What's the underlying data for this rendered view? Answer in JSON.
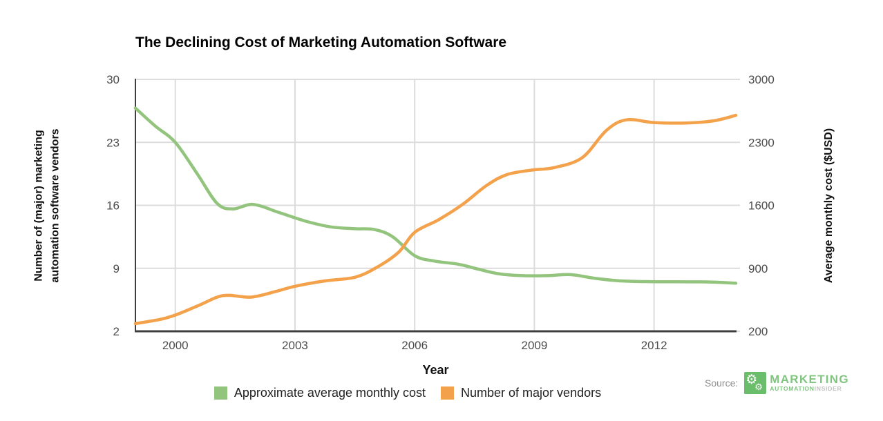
{
  "chart_data": {
    "type": "line",
    "title": "The Declining Cost of Marketing Automation Software",
    "grid": true,
    "legend_position": "bottom",
    "background": "#ffffff",
    "grid_color": "#dcdcdc",
    "axis_color": "#3f3f3f",
    "tick_text_color": "#4c4c4c",
    "x_axis": {
      "label": "Year",
      "ticks": [
        2000,
        2003,
        2006,
        2009,
        2012
      ],
      "range": [
        1999,
        2014.05
      ]
    },
    "y_left": {
      "label": "Number of (major) marketing automation software vendors",
      "label_lines": [
        "Number of (major) marketing",
        "automation software vendors"
      ],
      "ticks": [
        30,
        23,
        16,
        9,
        2
      ],
      "range": [
        2,
        30
      ]
    },
    "y_right": {
      "label": "Average monthly cost ($USD)",
      "ticks": [
        3000,
        2300,
        1600,
        900,
        200
      ],
      "range": [
        200,
        3000
      ]
    },
    "series": [
      {
        "name": "Approximate average monthly cost",
        "axis": "right",
        "color": "#93c47d",
        "points": [
          [
            1999,
            2680
          ],
          [
            1999.5,
            2480
          ],
          [
            2000,
            2300
          ],
          [
            2000.55,
            1950
          ],
          [
            2001.05,
            1620
          ],
          [
            2001.45,
            1560
          ],
          [
            2001.95,
            1610
          ],
          [
            2002.6,
            1520
          ],
          [
            2003.3,
            1420
          ],
          [
            2003.9,
            1360
          ],
          [
            2004.5,
            1340
          ],
          [
            2005,
            1330
          ],
          [
            2005.45,
            1250
          ],
          [
            2006,
            1040
          ],
          [
            2006.5,
            980
          ],
          [
            2007.1,
            945
          ],
          [
            2007.6,
            890
          ],
          [
            2008.1,
            840
          ],
          [
            2008.7,
            818
          ],
          [
            2009.3,
            818
          ],
          [
            2009.9,
            830
          ],
          [
            2010.5,
            790
          ],
          [
            2011.1,
            762
          ],
          [
            2011.8,
            752
          ],
          [
            2012.6,
            750
          ],
          [
            2013.4,
            748
          ],
          [
            2014.05,
            735
          ]
        ]
      },
      {
        "name": "Number of major vendors",
        "axis": "left",
        "color": "#f3a24b",
        "points": [
          [
            1999,
            2.85
          ],
          [
            1999.6,
            3.3
          ],
          [
            2000,
            3.8
          ],
          [
            2000.6,
            4.9
          ],
          [
            2001.05,
            5.8
          ],
          [
            2001.35,
            6.0
          ],
          [
            2001.9,
            5.8
          ],
          [
            2002.5,
            6.4
          ],
          [
            2003,
            7.0
          ],
          [
            2003.75,
            7.6
          ],
          [
            2004.5,
            8.0
          ],
          [
            2005.05,
            9.1
          ],
          [
            2005.6,
            10.8
          ],
          [
            2006,
            13.0
          ],
          [
            2006.6,
            14.4
          ],
          [
            2007.2,
            16.1
          ],
          [
            2007.8,
            18.2
          ],
          [
            2008.3,
            19.4
          ],
          [
            2008.9,
            19.9
          ],
          [
            2009.5,
            20.2
          ],
          [
            2010.2,
            21.3
          ],
          [
            2010.8,
            24.3
          ],
          [
            2011.3,
            25.5
          ],
          [
            2012,
            25.2
          ],
          [
            2012.8,
            25.15
          ],
          [
            2013.5,
            25.4
          ],
          [
            2014.05,
            26.0
          ]
        ]
      }
    ]
  },
  "source": {
    "prefix": "Source:",
    "brand_top": "MARKETING",
    "brand_bottom_primary": "AUTOMATION",
    "brand_bottom_secondary": "INSIDER",
    "logo_color": "#6abd6a",
    "brand_green": "#7fc47f",
    "brand_gray": "#c2c2c2"
  }
}
